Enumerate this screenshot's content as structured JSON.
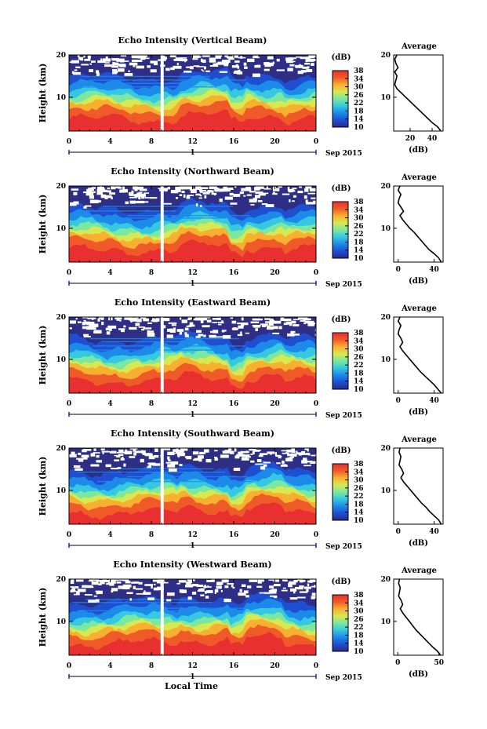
{
  "figure": {
    "x_axis_title": "Local Time",
    "day_label": "1",
    "date_label": "Sep 2015",
    "colorbar_unit": "(dB)",
    "avg_title": "Average",
    "avg_xlabel": "(dB)",
    "ylabel": "Height (km)"
  },
  "chart_data": [
    {
      "type": "heatmap",
      "title": "Echo Intensity (Vertical Beam)",
      "xlabel": "Local Time",
      "ylabel": "Height (km)",
      "x_ticks": [
        "0",
        "4",
        "8",
        "12",
        "16",
        "20",
        "0"
      ],
      "y_ticks": [
        "10",
        "20"
      ],
      "xlim": [
        0,
        24
      ],
      "ylim": [
        2,
        20
      ],
      "colorbar": {
        "ticks": [
          "10",
          "14",
          "18",
          "22",
          "26",
          "30",
          "34",
          "38"
        ],
        "range": [
          10,
          38
        ],
        "colors": [
          "#2a2a8c",
          "#1f4fd0",
          "#1c8ae8",
          "#35c8e0",
          "#7ae8a0",
          "#d8e850",
          "#f8b030",
          "#f05a28",
          "#e83030"
        ]
      },
      "data_gap": [
        8.9,
        9.2
      ],
      "profile": {
        "title": "Average",
        "xlabel": "(dB)",
        "x_ticks": [
          "20",
          "40"
        ],
        "xlim": [
          5,
          50
        ],
        "height": [
          2,
          3,
          4,
          5,
          6,
          7,
          8,
          9,
          10,
          11,
          12,
          13,
          14,
          15,
          16,
          17,
          18,
          19,
          20
        ],
        "value": [
          48,
          45,
          40,
          36,
          32,
          28,
          24,
          20,
          16,
          12,
          8,
          6,
          7,
          8,
          6,
          9,
          7,
          6,
          8
        ]
      }
    },
    {
      "type": "heatmap",
      "title": "Echo Intensity (Northward Beam)",
      "xlabel": "Local Time",
      "ylabel": "Height (km)",
      "x_ticks": [
        "0",
        "4",
        "8",
        "12",
        "16",
        "20",
        "0"
      ],
      "y_ticks": [
        "10",
        "20"
      ],
      "xlim": [
        0,
        24
      ],
      "ylim": [
        2,
        20
      ],
      "colorbar": {
        "ticks": [
          "10",
          "14",
          "18",
          "22",
          "26",
          "30",
          "34",
          "38"
        ],
        "range": [
          10,
          38
        ],
        "colors": [
          "#2a2a8c",
          "#1f4fd0",
          "#1c8ae8",
          "#35c8e0",
          "#7ae8a0",
          "#d8e850",
          "#f8b030",
          "#f05a28",
          "#e83030"
        ]
      },
      "data_gap": [
        8.9,
        9.2
      ],
      "profile": {
        "title": "Average",
        "xlabel": "(dB)",
        "x_ticks": [
          "0",
          "40"
        ],
        "xlim": [
          -5,
          50
        ],
        "height": [
          2,
          3,
          4,
          5,
          6,
          7,
          8,
          9,
          10,
          11,
          12,
          13,
          14,
          15,
          16,
          17,
          18,
          19,
          20
        ],
        "value": [
          48,
          45,
          40,
          34,
          30,
          26,
          22,
          18,
          13,
          9,
          5,
          2,
          6,
          3,
          0,
          1,
          3,
          0,
          2
        ]
      }
    },
    {
      "type": "heatmap",
      "title": "Echo Intensity (Eastward Beam)",
      "xlabel": "Local Time",
      "ylabel": "Height (km)",
      "x_ticks": [
        "0",
        "4",
        "8",
        "12",
        "16",
        "20",
        "0"
      ],
      "y_ticks": [
        "10",
        "20"
      ],
      "xlim": [
        0,
        24
      ],
      "ylim": [
        2,
        20
      ],
      "colorbar": {
        "ticks": [
          "10",
          "14",
          "18",
          "22",
          "26",
          "30",
          "34",
          "38"
        ],
        "range": [
          10,
          38
        ],
        "colors": [
          "#2a2a8c",
          "#1f4fd0",
          "#1c8ae8",
          "#35c8e0",
          "#7ae8a0",
          "#d8e850",
          "#f8b030",
          "#f05a28",
          "#e83030"
        ]
      },
      "data_gap": [
        8.9,
        9.2
      ],
      "profile": {
        "title": "Average",
        "xlabel": "(dB)",
        "x_ticks": [
          "0",
          "40"
        ],
        "xlim": [
          -5,
          50
        ],
        "height": [
          2,
          3,
          4,
          5,
          6,
          7,
          8,
          9,
          10,
          11,
          12,
          13,
          14,
          15,
          16,
          17,
          18,
          19,
          20
        ],
        "value": [
          48,
          44,
          40,
          35,
          30,
          25,
          21,
          17,
          13,
          9,
          5,
          2,
          5,
          3,
          0,
          1,
          3,
          0,
          2
        ]
      }
    },
    {
      "type": "heatmap",
      "title": "Echo Intensity (Southward Beam)",
      "xlabel": "Local Time",
      "ylabel": "Height (km)",
      "x_ticks": [
        "0",
        "4",
        "8",
        "12",
        "16",
        "20",
        "0"
      ],
      "y_ticks": [
        "10",
        "20"
      ],
      "xlim": [
        0,
        24
      ],
      "ylim": [
        2,
        20
      ],
      "colorbar": {
        "ticks": [
          "10",
          "14",
          "18",
          "22",
          "26",
          "30",
          "34",
          "38"
        ],
        "range": [
          10,
          38
        ],
        "colors": [
          "#2a2a8c",
          "#1f4fd0",
          "#1c8ae8",
          "#35c8e0",
          "#7ae8a0",
          "#d8e850",
          "#f8b030",
          "#f05a28",
          "#e83030"
        ]
      },
      "data_gap": [
        8.9,
        9.2
      ],
      "profile": {
        "title": "Average",
        "xlabel": "(dB)",
        "x_ticks": [
          "0",
          "40"
        ],
        "xlim": [
          -5,
          50
        ],
        "height": [
          2,
          3,
          4,
          5,
          6,
          7,
          8,
          9,
          10,
          11,
          12,
          13,
          14,
          15,
          16,
          17,
          18,
          19,
          20
        ],
        "value": [
          48,
          45,
          40,
          35,
          31,
          26,
          22,
          18,
          14,
          10,
          6,
          3,
          6,
          4,
          1,
          2,
          3,
          1,
          2
        ]
      }
    },
    {
      "type": "heatmap",
      "title": "Echo Intensity (Westward Beam)",
      "xlabel": "Local Time",
      "ylabel": "Height (km)",
      "x_ticks": [
        "0",
        "4",
        "8",
        "12",
        "16",
        "20",
        "0"
      ],
      "y_ticks": [
        "10",
        "20"
      ],
      "xlim": [
        0,
        24
      ],
      "ylim": [
        2,
        20
      ],
      "colorbar": {
        "ticks": [
          "10",
          "14",
          "18",
          "22",
          "26",
          "30",
          "34",
          "38"
        ],
        "range": [
          10,
          38
        ],
        "colors": [
          "#2a2a8c",
          "#1f4fd0",
          "#1c8ae8",
          "#35c8e0",
          "#7ae8a0",
          "#d8e850",
          "#f8b030",
          "#f05a28",
          "#e83030"
        ]
      },
      "data_gap": [
        8.9,
        9.2
      ],
      "profile": {
        "title": "Average",
        "xlabel": "(dB)",
        "x_ticks": [
          "0",
          "50"
        ],
        "xlim": [
          -5,
          55
        ],
        "height": [
          2,
          3,
          4,
          5,
          6,
          7,
          8,
          9,
          10,
          11,
          12,
          13,
          14,
          15,
          16,
          17,
          18,
          19,
          20
        ],
        "value": [
          52,
          48,
          42,
          37,
          32,
          27,
          22,
          18,
          14,
          10,
          6,
          3,
          6,
          4,
          1,
          2,
          3,
          1,
          2
        ]
      }
    }
  ]
}
